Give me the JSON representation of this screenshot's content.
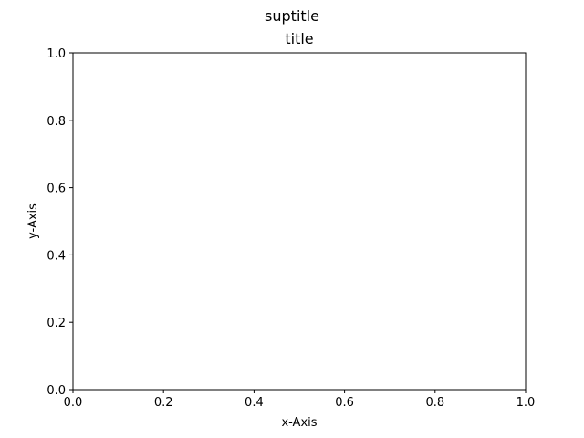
{
  "chart_data": {
    "type": "line",
    "suptitle": "suptitle",
    "title": "title",
    "xlabel": "x-Axis",
    "ylabel": "y-Axis",
    "xlim": [
      0.0,
      1.0
    ],
    "ylim": [
      0.0,
      1.0
    ],
    "xticks": [
      "0.0",
      "0.2",
      "0.4",
      "0.6",
      "0.8",
      "1.0"
    ],
    "yticks": [
      "0.0",
      "0.2",
      "0.4",
      "0.6",
      "0.8",
      "1.0"
    ],
    "grid": false,
    "series": []
  },
  "colors": {
    "axes": "#000000",
    "background": "#ffffff"
  }
}
